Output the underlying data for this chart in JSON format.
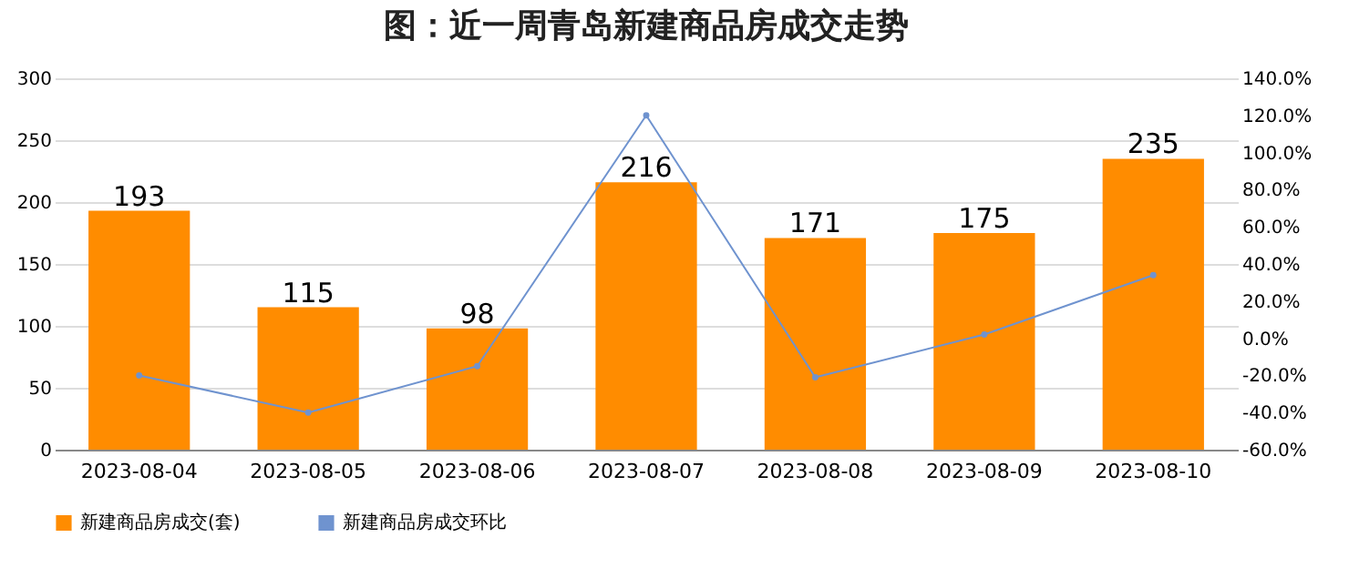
{
  "chart_data": {
    "type": "bar",
    "title": "图：近一周青岛新建商品房成交走势",
    "categories": [
      "2023-08-04",
      "2023-08-05",
      "2023-08-06",
      "2023-08-07",
      "2023-08-08",
      "2023-08-09",
      "2023-08-10"
    ],
    "series": [
      {
        "name": "新建商品房成交(套)",
        "color": "#ff8c00",
        "values": [
          193,
          115,
          98,
          216,
          171,
          175,
          235
        ],
        "value_labels": [
          "193",
          "115",
          "98",
          "216",
          "171",
          "175",
          "235"
        ]
      },
      {
        "name": "新建商品房成交环比",
        "type": "line",
        "axis": "y2",
        "color": "#6f93cf",
        "marker": "circle",
        "values": [
          -20,
          -40,
          -15,
          120,
          -21,
          2,
          34
        ]
      }
    ],
    "ylim": [
      0,
      300
    ],
    "yticks": [
      0,
      50,
      100,
      150,
      200,
      250,
      300
    ],
    "y2lim": [
      -60,
      140
    ],
    "y2ticks": [
      {
        "value": -60,
        "label": "-60.0%"
      },
      {
        "value": -40,
        "label": "-40.0%"
      },
      {
        "value": -20,
        "label": "-20.0%"
      },
      {
        "value": 0,
        "label": "0.0%"
      },
      {
        "value": 20,
        "label": "20.0%"
      },
      {
        "value": 40,
        "label": "40.0%"
      },
      {
        "value": 60,
        "label": "60.0%"
      },
      {
        "value": 80,
        "label": "80.0%"
      },
      {
        "value": 100,
        "label": "100.0%"
      },
      {
        "value": 120,
        "label": "120.0%"
      },
      {
        "value": 140,
        "label": "140.0%"
      }
    ],
    "grid": "y",
    "legend": "bottom"
  }
}
